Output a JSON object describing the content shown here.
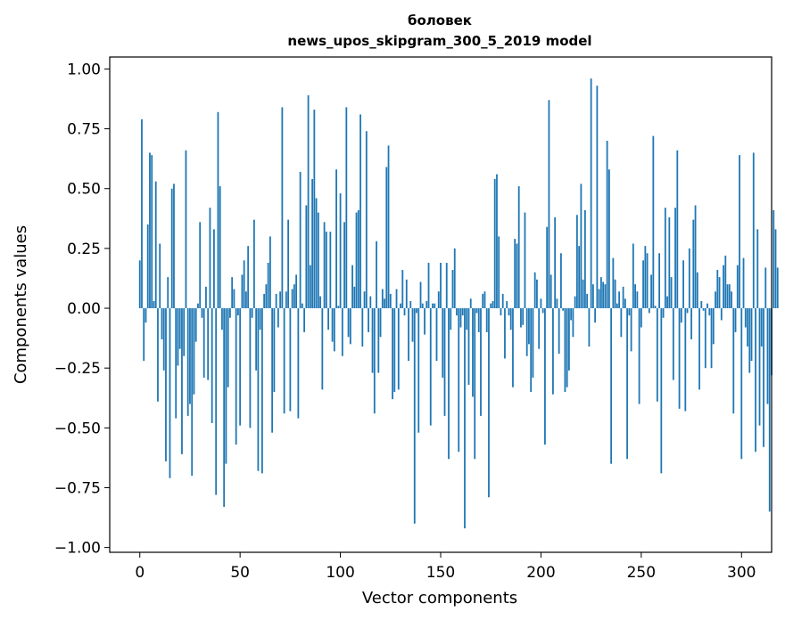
{
  "chart_data": {
    "type": "bar",
    "title_line1": "боловек",
    "title_line2": "news_upos_skipgram_300_5_2019 model",
    "xlabel": "Vector components",
    "ylabel": "Components values",
    "xlim": [
      -15,
      315
    ],
    "ylim": [
      -1.02,
      1.05
    ],
    "xticks": [
      0,
      50,
      100,
      150,
      200,
      250,
      300
    ],
    "yticks": [
      -1.0,
      -0.75,
      -0.5,
      -0.25,
      0.0,
      0.25,
      0.5,
      0.75,
      1.0
    ],
    "xtick_labels": [
      "0",
      "50",
      "100",
      "150",
      "200",
      "250",
      "300"
    ],
    "ytick_labels": [
      "−1.00",
      "−0.75",
      "−0.50",
      "−0.25",
      "0.00",
      "0.25",
      "0.50",
      "0.75",
      "1.00"
    ],
    "bar_color": "#1f77b4",
    "values": [
      0.2,
      0.79,
      -0.22,
      -0.06,
      0.35,
      0.65,
      0.64,
      0.03,
      0.53,
      -0.39,
      0.27,
      -0.13,
      -0.26,
      -0.64,
      0.13,
      -0.71,
      0.5,
      0.52,
      -0.46,
      -0.24,
      -0.17,
      -0.61,
      -0.2,
      0.66,
      -0.45,
      -0.4,
      -0.7,
      -0.36,
      -0.14,
      0.02,
      0.36,
      -0.04,
      -0.29,
      0.09,
      -0.3,
      0.42,
      -0.48,
      0.33,
      -0.78,
      0.82,
      0.51,
      -0.09,
      -0.83,
      -0.65,
      -0.33,
      -0.04,
      0.13,
      0.08,
      -0.57,
      -0.03,
      -0.49,
      0.14,
      0.2,
      0.07,
      0.26,
      -0.5,
      -0.04,
      0.37,
      -0.26,
      -0.68,
      -0.09,
      -0.69,
      0.06,
      0.1,
      0.19,
      0.3,
      -0.52,
      -0.35,
      0.06,
      -0.08,
      0.07,
      0.84,
      -0.44,
      0.07,
      0.37,
      -0.43,
      0.08,
      0.1,
      0.14,
      -0.46,
      0.57,
      0.02,
      -0.1,
      0.43,
      0.89,
      0.18,
      0.54,
      0.83,
      0.46,
      0.4,
      0.05,
      -0.34,
      0.36,
      0.32,
      -0.09,
      0.32,
      -0.14,
      -0.18,
      0.58,
      0.01,
      0.48,
      -0.2,
      0.36,
      0.84,
      -0.12,
      -0.15,
      0.18,
      0.09,
      0.4,
      0.41,
      0.81,
      -0.16,
      0.07,
      0.74,
      -0.1,
      0.05,
      -0.27,
      -0.44,
      0.28,
      -0.27,
      -0.12,
      0.08,
      0.04,
      0.59,
      0.68,
      0.06,
      -0.38,
      -0.35,
      0.08,
      -0.34,
      0.02,
      0.16,
      -0.03,
      0.12,
      -0.22,
      0.03,
      -0.14,
      -0.9,
      -0.02,
      -0.52,
      0.11,
      0.02,
      -0.11,
      0.03,
      0.19,
      -0.49,
      0.02,
      0.02,
      -0.22,
      0.07,
      0.19,
      -0.29,
      -0.45,
      0.19,
      -0.63,
      -0.09,
      0.16,
      0.25,
      -0.03,
      -0.6,
      -0.08,
      -0.03,
      -0.92,
      -0.09,
      -0.32,
      0.04,
      -0.37,
      -0.63,
      -0.02,
      -0.1,
      -0.45,
      0.06,
      0.07,
      -0.1,
      -0.79,
      0.02,
      0.03,
      0.54,
      0.56,
      0.3,
      -0.03,
      0.06,
      -0.21,
      0.03,
      -0.03,
      -0.09,
      -0.33,
      0.29,
      0.27,
      0.51,
      -0.08,
      -0.07,
      0.4,
      -0.2,
      -0.15,
      -0.35,
      -0.29,
      0.15,
      0.12,
      -0.17,
      0.04,
      -0.02,
      -0.57,
      0.34,
      0.87,
      0.14,
      -0.36,
      0.38,
      0.04,
      -0.19,
      0.23,
      -0.01,
      -0.35,
      -0.33,
      -0.26,
      -0.05,
      -0.12,
      0.05,
      0.39,
      0.26,
      0.52,
      0.12,
      0.41,
      0.06,
      -0.16,
      0.96,
      0.1,
      -0.06,
      0.93,
      0.08,
      0.13,
      0.11,
      0.1,
      0.7,
      0.58,
      -0.65,
      0.21,
      0.12,
      0.02,
      0.07,
      -0.12,
      0.09,
      0.04,
      -0.63,
      -0.03,
      -0.18,
      0.27,
      0.1,
      0.07,
      -0.4,
      -0.08,
      0.2,
      0.26,
      0.23,
      -0.02,
      0.14,
      0.72,
      0.01,
      -0.39,
      0.23,
      -0.69,
      -0.04,
      0.42,
      0.05,
      0.38,
      0.13,
      -0.3,
      0.42,
      0.66,
      -0.42,
      -0.06,
      0.2,
      -0.43,
      -0.02,
      0.25,
      -0.13,
      0.37,
      0.43,
      0.15,
      -0.34,
      0.03,
      -0.01,
      -0.25,
      0.02,
      -0.03,
      -0.25,
      -0.15,
      0.07,
      0.16,
      0.13,
      -0.05,
      0.18,
      0.22,
      0.1,
      0.1,
      0.07,
      -0.44,
      -0.1,
      0.18,
      0.64,
      -0.63,
      0.21,
      -0.08,
      -0.16,
      -0.27,
      -0.22,
      0.65,
      -0.6,
      0.33,
      -0.49,
      -0.16,
      -0.58,
      0.17,
      -0.4,
      -0.85,
      -0.28,
      0.41,
      0.33,
      0.17
    ]
  }
}
